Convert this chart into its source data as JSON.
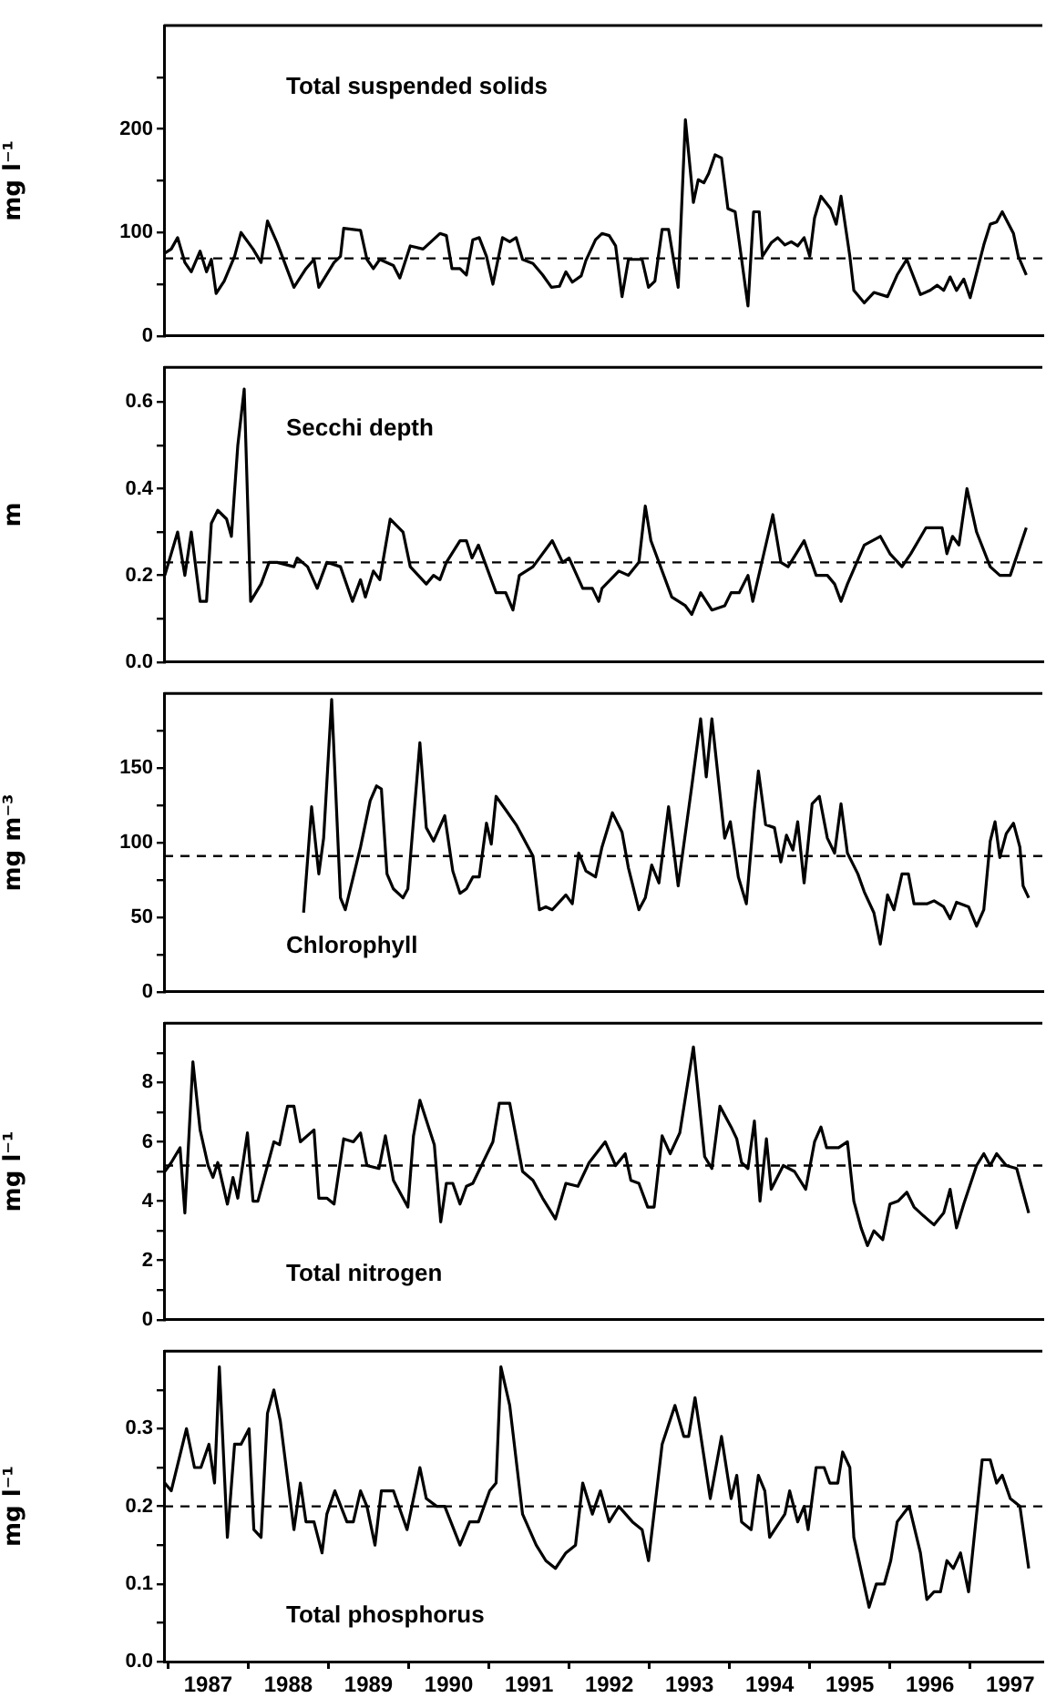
{
  "chart_data": [
    {
      "type": "line",
      "title": "Total suspended solids",
      "ylabel": "mg l⁻¹",
      "xlim": [
        1986.95,
        1997.9
      ],
      "ylim": [
        0,
        300
      ],
      "yticks": [
        0,
        {
          "value": 50,
          "label": null
        },
        100,
        {
          "value": 150,
          "label": null
        },
        200,
        {
          "value": 250,
          "label": null
        }
      ],
      "tick_labels": "y",
      "marker": "none",
      "line_style": "solid",
      "ref_lines": [
        {
          "axis": "y",
          "value": 75,
          "line_style": "dashed"
        }
      ],
      "x": [
        1986.96,
        1987.04,
        1987.12,
        1987.21,
        1987.29,
        1987.4,
        1987.48,
        1987.54,
        1987.6,
        1987.7,
        1987.83,
        1987.91,
        1988.06,
        1988.16,
        1988.24,
        1988.36,
        1988.57,
        1988.72,
        1988.82,
        1988.88,
        1989.07,
        1989.15,
        1989.19,
        1989.4,
        1989.48,
        1989.56,
        1989.64,
        1989.81,
        1989.89,
        1990.02,
        1990.18,
        1990.39,
        1990.47,
        1990.54,
        1990.64,
        1990.72,
        1990.8,
        1990.88,
        1990.97,
        1991.05,
        1991.17,
        1991.26,
        1991.34,
        1991.42,
        1991.55,
        1991.67,
        1991.78,
        1991.88,
        1991.96,
        1992.04,
        1992.15,
        1992.21,
        1992.33,
        1992.41,
        1992.5,
        1992.58,
        1992.66,
        1992.74,
        1992.91,
        1992.99,
        1993.07,
        1993.16,
        1993.24,
        1993.36,
        1993.45,
        1993.55,
        1993.61,
        1993.68,
        1993.74,
        1993.82,
        1993.9,
        1993.98,
        1994.07,
        1994.23,
        1994.3,
        1994.37,
        1994.41,
        1994.52,
        1994.6,
        1994.69,
        1994.77,
        1994.85,
        1994.93,
        1995.0,
        1995.06,
        1995.14,
        1995.26,
        1995.33,
        1995.39,
        1995.5,
        1995.55,
        1995.68,
        1995.8,
        1995.97,
        1996.09,
        1996.21,
        1996.38,
        1996.5,
        1996.59,
        1996.67,
        1996.75,
        1996.83,
        1996.92,
        1997.0,
        1997.17,
        1997.25,
        1997.33,
        1997.4,
        1997.54,
        1997.6,
        1997.7
      ],
      "series": [
        {
          "color": "#000000",
          "values": [
            80,
            84,
            95,
            71,
            62,
            82,
            62,
            74,
            41,
            53,
            77,
            100,
            84,
            71,
            111,
            90,
            47,
            65,
            74,
            47,
            71,
            77,
            104,
            102,
            74,
            65,
            74,
            68,
            56,
            87,
            84,
            99,
            97,
            65,
            65,
            59,
            93,
            95,
            77,
            50,
            95,
            91,
            95,
            74,
            70,
            59,
            47,
            48,
            62,
            52,
            58,
            73,
            93,
            99,
            97,
            87,
            38,
            74,
            74,
            47,
            53,
            103,
            103,
            47,
            209,
            129,
            151,
            148,
            157,
            175,
            172,
            123,
            120,
            29,
            120,
            120,
            77,
            90,
            95,
            88,
            91,
            87,
            95,
            77,
            114,
            135,
            123,
            108,
            135,
            77,
            44,
            32,
            42,
            38,
            59,
            74,
            40,
            44,
            49,
            44,
            57,
            44,
            55,
            37,
            88,
            108,
            110,
            120,
            99,
            77,
            59
          ]
        }
      ]
    },
    {
      "type": "line",
      "title": "Secchi depth",
      "ylabel": "m",
      "xlim": [
        1986.95,
        1997.9
      ],
      "ylim": [
        0,
        0.68
      ],
      "yticks": [
        {
          "value": 0,
          "label": "0.0"
        },
        {
          "value": 0.1,
          "label": null
        },
        0.2,
        {
          "value": 0.3,
          "label": null
        },
        0.4,
        {
          "value": 0.5,
          "label": null
        },
        0.6
      ],
      "tick_labels": "y",
      "marker": "none",
      "line_style": "solid",
      "ref_lines": [
        {
          "axis": "y",
          "value": 0.23,
          "line_style": "dashed"
        }
      ],
      "x": [
        1986.96,
        1987.12,
        1987.21,
        1987.29,
        1987.4,
        1987.48,
        1987.54,
        1987.62,
        1987.73,
        1987.79,
        1987.87,
        1987.95,
        1988.03,
        1988.16,
        1988.26,
        1988.36,
        1988.57,
        1988.61,
        1988.74,
        1988.86,
        1988.98,
        1989.15,
        1989.3,
        1989.4,
        1989.46,
        1989.56,
        1989.64,
        1989.77,
        1989.93,
        1990.02,
        1990.22,
        1990.31,
        1990.39,
        1990.47,
        1990.64,
        1990.72,
        1990.79,
        1990.87,
        1991.09,
        1991.21,
        1991.3,
        1991.38,
        1991.55,
        1991.79,
        1991.92,
        1992.0,
        1992.17,
        1992.29,
        1992.37,
        1992.41,
        1992.62,
        1992.74,
        1992.87,
        1992.95,
        1993.02,
        1993.28,
        1993.45,
        1993.53,
        1993.64,
        1993.78,
        1993.94,
        1994.02,
        1994.12,
        1994.23,
        1994.29,
        1994.54,
        1994.64,
        1994.73,
        1994.93,
        1995.08,
        1995.22,
        1995.31,
        1995.39,
        1995.47,
        1995.68,
        1995.88,
        1996.0,
        1996.15,
        1996.26,
        1996.45,
        1996.65,
        1996.71,
        1996.78,
        1996.86,
        1996.96,
        1997.08,
        1997.25,
        1997.37,
        1997.5,
        1997.7
      ],
      "series": [
        {
          "color": "#000000",
          "values": [
            0.2,
            0.3,
            0.2,
            0.3,
            0.14,
            0.14,
            0.32,
            0.35,
            0.33,
            0.29,
            0.5,
            0.63,
            0.14,
            0.18,
            0.23,
            0.23,
            0.22,
            0.24,
            0.22,
            0.17,
            0.23,
            0.22,
            0.14,
            0.19,
            0.15,
            0.21,
            0.19,
            0.33,
            0.3,
            0.22,
            0.18,
            0.2,
            0.19,
            0.23,
            0.28,
            0.28,
            0.24,
            0.27,
            0.16,
            0.16,
            0.12,
            0.2,
            0.22,
            0.28,
            0.23,
            0.24,
            0.17,
            0.17,
            0.14,
            0.17,
            0.21,
            0.2,
            0.23,
            0.36,
            0.28,
            0.15,
            0.13,
            0.11,
            0.16,
            0.12,
            0.13,
            0.16,
            0.16,
            0.2,
            0.14,
            0.34,
            0.23,
            0.22,
            0.28,
            0.2,
            0.2,
            0.18,
            0.14,
            0.18,
            0.27,
            0.29,
            0.25,
            0.22,
            0.25,
            0.31,
            0.31,
            0.25,
            0.29,
            0.27,
            0.4,
            0.3,
            0.22,
            0.2,
            0.2,
            0.31
          ]
        }
      ]
    },
    {
      "type": "line",
      "title": "Chlorophyll",
      "ylabel": "mg m⁻³",
      "xlim": [
        1986.95,
        1997.9
      ],
      "ylim": [
        0,
        200
      ],
      "yticks": [
        0,
        {
          "value": 25,
          "label": null
        },
        50,
        {
          "value": 75,
          "label": null
        },
        100,
        {
          "value": 125,
          "label": null
        },
        150,
        {
          "value": 175,
          "label": null
        }
      ],
      "tick_labels": "y",
      "marker": "none",
      "line_style": "solid",
      "ref_lines": [
        {
          "axis": "y",
          "value": 91,
          "line_style": "dashed"
        }
      ],
      "x": [
        1988.69,
        1988.79,
        1988.88,
        1988.94,
        1989.04,
        1989.15,
        1989.21,
        1989.4,
        1989.52,
        1989.6,
        1989.66,
        1989.73,
        1989.81,
        1989.93,
        1989.99,
        1990.14,
        1990.22,
        1990.31,
        1990.45,
        1990.55,
        1990.64,
        1990.72,
        1990.8,
        1990.88,
        1990.97,
        1991.03,
        1991.09,
        1991.21,
        1991.34,
        1991.55,
        1991.63,
        1991.71,
        1991.79,
        1991.96,
        1992.04,
        1992.12,
        1992.21,
        1992.33,
        1992.41,
        1992.54,
        1992.66,
        1992.74,
        1992.87,
        1992.95,
        1993.03,
        1993.12,
        1993.24,
        1993.36,
        1993.53,
        1993.64,
        1993.71,
        1993.78,
        1993.94,
        1994.01,
        1994.11,
        1994.21,
        1994.31,
        1994.36,
        1994.45,
        1994.56,
        1994.64,
        1994.71,
        1994.79,
        1994.85,
        1994.93,
        1995.03,
        1995.12,
        1995.22,
        1995.31,
        1995.39,
        1995.47,
        1995.6,
        1995.68,
        1995.8,
        1995.88,
        1995.97,
        1996.05,
        1996.15,
        1996.23,
        1996.3,
        1996.46,
        1996.55,
        1996.67,
        1996.75,
        1996.83,
        1996.98,
        1997.08,
        1997.17,
        1997.25,
        1997.31,
        1997.37,
        1997.45,
        1997.54,
        1997.62,
        1997.66,
        1997.73
      ],
      "series": [
        {
          "color": "#000000",
          "values": [
            53,
            124,
            79,
            103,
            196,
            63,
            55,
            97,
            128,
            138,
            136,
            79,
            69,
            63,
            69,
            167,
            110,
            101,
            118,
            81,
            66,
            69,
            77,
            77,
            113,
            99,
            131,
            122,
            112,
            91,
            55,
            57,
            55,
            65,
            59,
            93,
            81,
            77,
            97,
            120,
            107,
            83,
            55,
            63,
            85,
            73,
            124,
            71,
            138,
            183,
            144,
            183,
            103,
            114,
            77,
            59,
            122,
            148,
            112,
            110,
            87,
            105,
            95,
            114,
            73,
            126,
            131,
            103,
            93,
            126,
            93,
            79,
            67,
            53,
            32,
            65,
            55,
            79,
            79,
            59,
            59,
            61,
            57,
            49,
            60,
            57,
            44,
            55,
            101,
            114,
            90,
            106,
            113,
            97,
            71,
            63
          ]
        }
      ]
    },
    {
      "type": "line",
      "title": "Total nitrogen",
      "ylabel": "mg l⁻¹",
      "xlim": [
        1986.95,
        1997.9
      ],
      "ylim": [
        0,
        10
      ],
      "yticks": [
        0,
        {
          "value": 1,
          "label": null
        },
        2,
        {
          "value": 3,
          "label": null
        },
        4,
        {
          "value": 5,
          "label": null
        },
        6,
        {
          "value": 7,
          "label": null
        },
        8,
        {
          "value": 9,
          "label": null
        }
      ],
      "tick_labels": "y",
      "marker": "none",
      "line_style": "solid",
      "ref_lines": [
        {
          "axis": "y",
          "value": 5.2,
          "line_style": "dashed"
        }
      ],
      "x": [
        1986.96,
        1987.04,
        1987.15,
        1987.21,
        1987.31,
        1987.4,
        1987.5,
        1987.56,
        1987.62,
        1987.74,
        1987.81,
        1987.87,
        1987.99,
        1988.06,
        1988.12,
        1988.32,
        1988.39,
        1988.49,
        1988.57,
        1988.65,
        1988.82,
        1988.88,
        1988.98,
        1989.07,
        1989.19,
        1989.31,
        1989.4,
        1989.48,
        1989.63,
        1989.71,
        1989.81,
        1989.99,
        1990.06,
        1990.14,
        1990.26,
        1990.32,
        1990.4,
        1990.47,
        1990.55,
        1990.64,
        1990.72,
        1990.8,
        1991.05,
        1991.13,
        1991.26,
        1991.42,
        1991.55,
        1991.67,
        1991.83,
        1991.96,
        1992.11,
        1992.25,
        1992.45,
        1992.58,
        1992.7,
        1992.77,
        1992.87,
        1992.98,
        1993.06,
        1993.16,
        1993.26,
        1993.38,
        1993.55,
        1993.69,
        1993.78,
        1993.88,
        1994.02,
        1994.09,
        1994.15,
        1994.23,
        1994.31,
        1994.38,
        1994.46,
        1994.52,
        1994.67,
        1994.81,
        1994.95,
        1995.06,
        1995.14,
        1995.21,
        1995.36,
        1995.47,
        1995.55,
        1995.64,
        1995.72,
        1995.8,
        1995.91,
        1996.0,
        1996.1,
        1996.21,
        1996.3,
        1996.42,
        1996.55,
        1996.67,
        1996.75,
        1996.83,
        1996.92,
        1997.08,
        1997.17,
        1997.25,
        1997.33,
        1997.45,
        1997.58,
        1997.73
      ],
      "series": [
        {
          "color": "#000000",
          "values": [
            5.0,
            5.3,
            5.8,
            3.6,
            8.7,
            6.4,
            5.2,
            4.8,
            5.3,
            3.9,
            4.8,
            4.1,
            6.3,
            4.0,
            4.0,
            6.0,
            5.9,
            7.2,
            7.2,
            6.0,
            6.4,
            4.1,
            4.1,
            3.9,
            6.1,
            6.0,
            6.3,
            5.2,
            5.1,
            6.2,
            4.7,
            3.8,
            6.2,
            7.4,
            6.4,
            5.9,
            3.3,
            4.6,
            4.6,
            3.9,
            4.5,
            4.6,
            6.0,
            7.3,
            7.3,
            5.0,
            4.7,
            4.1,
            3.4,
            4.6,
            4.5,
            5.3,
            6.0,
            5.2,
            5.6,
            4.7,
            4.6,
            3.8,
            3.8,
            6.2,
            5.6,
            6.3,
            9.2,
            5.5,
            5.1,
            7.2,
            6.5,
            6.1,
            5.3,
            5.1,
            6.7,
            4.0,
            6.1,
            4.4,
            5.2,
            5.0,
            4.4,
            6.0,
            6.5,
            5.8,
            5.8,
            6.0,
            4.0,
            3.1,
            2.5,
            3.0,
            2.7,
            3.9,
            4.0,
            4.3,
            3.8,
            3.5,
            3.2,
            3.6,
            4.4,
            3.1,
            3.9,
            5.2,
            5.6,
            5.2,
            5.6,
            5.2,
            5.1,
            3.6
          ]
        }
      ]
    },
    {
      "type": "line",
      "title": "Total phosphorus",
      "ylabel": "mg l⁻¹",
      "xlim": [
        1986.95,
        1997.9
      ],
      "ylim": [
        0,
        0.4
      ],
      "yticks": [
        {
          "value": 0,
          "label": "0.0"
        },
        {
          "value": 0.05,
          "label": null
        },
        0.1,
        {
          "value": 0.15,
          "label": null
        },
        0.2,
        {
          "value": 0.25,
          "label": null
        },
        0.3,
        {
          "value": 0.35,
          "label": null
        }
      ],
      "xticks": [
        {
          "value": 1987,
          "label": null
        },
        {
          "value": 1987.5,
          "label": "1987"
        },
        {
          "value": 1988,
          "label": null
        },
        {
          "value": 1988.5,
          "label": "1988"
        },
        {
          "value": 1989,
          "label": null
        },
        {
          "value": 1989.5,
          "label": "1989"
        },
        {
          "value": 1990,
          "label": null
        },
        {
          "value": 1990.5,
          "label": "1990"
        },
        {
          "value": 1991,
          "label": null
        },
        {
          "value": 1991.5,
          "label": "1991"
        },
        {
          "value": 1992,
          "label": null
        },
        {
          "value": 1992.5,
          "label": "1992"
        },
        {
          "value": 1993,
          "label": null
        },
        {
          "value": 1993.5,
          "label": "1993"
        },
        {
          "value": 1994,
          "label": null
        },
        {
          "value": 1994.5,
          "label": "1994"
        },
        {
          "value": 1995,
          "label": null
        },
        {
          "value": 1995.5,
          "label": "1995"
        },
        {
          "value": 1996,
          "label": null
        },
        {
          "value": 1996.5,
          "label": "1996"
        },
        {
          "value": 1997,
          "label": null
        },
        {
          "value": 1997.5,
          "label": "1997"
        }
      ],
      "marker": "none",
      "line_style": "solid",
      "ref_lines": [
        {
          "axis": "y",
          "value": 0.2,
          "line_style": "dashed"
        }
      ],
      "x": [
        1986.96,
        1987.04,
        1987.23,
        1987.33,
        1987.41,
        1987.51,
        1987.58,
        1987.64,
        1987.74,
        1987.83,
        1987.91,
        1988.01,
        1988.07,
        1988.16,
        1988.24,
        1988.32,
        1988.4,
        1988.57,
        1988.65,
        1988.72,
        1988.82,
        1988.92,
        1988.98,
        1989.08,
        1989.23,
        1989.31,
        1989.4,
        1989.48,
        1989.58,
        1989.66,
        1989.81,
        1989.98,
        1990.14,
        1990.22,
        1990.35,
        1990.45,
        1990.64,
        1990.76,
        1990.87,
        1991.01,
        1991.09,
        1991.15,
        1991.26,
        1991.42,
        1991.59,
        1991.71,
        1991.83,
        1991.96,
        1992.08,
        1992.17,
        1992.29,
        1992.39,
        1992.5,
        1992.62,
        1992.79,
        1992.91,
        1992.99,
        1993.16,
        1993.32,
        1993.43,
        1993.49,
        1993.57,
        1993.76,
        1993.9,
        1994.02,
        1994.09,
        1994.15,
        1994.27,
        1994.36,
        1994.44,
        1994.5,
        1994.69,
        1994.75,
        1994.85,
        1994.93,
        1994.98,
        1995.08,
        1995.18,
        1995.25,
        1995.35,
        1995.41,
        1995.5,
        1995.55,
        1995.74,
        1995.83,
        1995.93,
        1996.01,
        1996.09,
        1996.24,
        1996.38,
        1996.46,
        1996.55,
        1996.63,
        1996.71,
        1996.79,
        1996.88,
        1996.98,
        1997.15,
        1997.25,
        1997.33,
        1997.4,
        1997.5,
        1997.62,
        1997.73
      ],
      "series": [
        {
          "color": "#000000",
          "values": [
            0.23,
            0.22,
            0.3,
            0.25,
            0.25,
            0.28,
            0.23,
            0.38,
            0.16,
            0.28,
            0.28,
            0.3,
            0.17,
            0.16,
            0.32,
            0.35,
            0.31,
            0.17,
            0.23,
            0.18,
            0.18,
            0.14,
            0.19,
            0.22,
            0.18,
            0.18,
            0.22,
            0.2,
            0.15,
            0.22,
            0.22,
            0.17,
            0.25,
            0.21,
            0.2,
            0.2,
            0.15,
            0.18,
            0.18,
            0.22,
            0.23,
            0.38,
            0.33,
            0.19,
            0.15,
            0.13,
            0.12,
            0.14,
            0.15,
            0.23,
            0.19,
            0.22,
            0.18,
            0.2,
            0.18,
            0.17,
            0.13,
            0.28,
            0.33,
            0.29,
            0.29,
            0.34,
            0.21,
            0.29,
            0.21,
            0.24,
            0.18,
            0.17,
            0.24,
            0.22,
            0.16,
            0.19,
            0.22,
            0.18,
            0.2,
            0.17,
            0.25,
            0.25,
            0.23,
            0.23,
            0.27,
            0.25,
            0.16,
            0.07,
            0.1,
            0.1,
            0.13,
            0.18,
            0.2,
            0.14,
            0.08,
            0.09,
            0.09,
            0.13,
            0.12,
            0.14,
            0.09,
            0.26,
            0.26,
            0.23,
            0.24,
            0.21,
            0.2,
            0.12
          ]
        }
      ]
    }
  ]
}
